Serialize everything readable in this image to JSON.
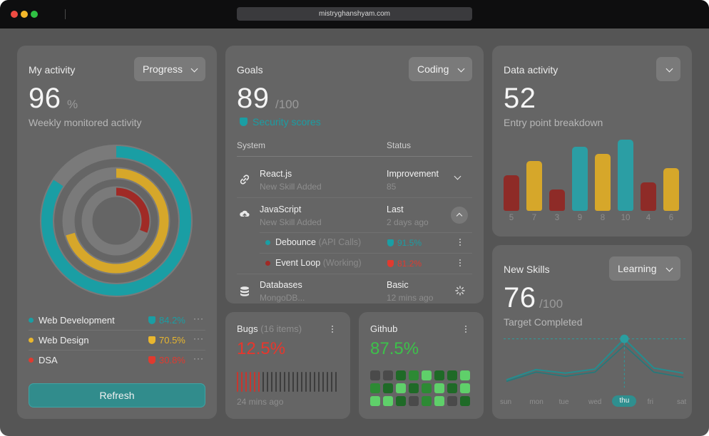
{
  "browser": {
    "url": "mistryghanshyam.com"
  },
  "colors": {
    "teal": "#1a9ea4",
    "yellow": "#d6a72a",
    "red": "#a02a26",
    "green": "#3cc24a",
    "bug_red": "#e8362c"
  },
  "activity": {
    "title": "My activity",
    "dropdown": "Progress",
    "value": "96",
    "unit": "%",
    "subtitle": "Weekly monitored activity",
    "rings": [
      {
        "name": "Web Development",
        "fraction": 0.842,
        "color": "#1a9ea4"
      },
      {
        "name": "Web Design",
        "fraction": 0.705,
        "color": "#d6a72a"
      },
      {
        "name": "DSA",
        "fraction": 0.308,
        "color": "#a02a26"
      }
    ],
    "legend": [
      {
        "name": "Web Development",
        "value": "84.2%",
        "color": "#1a9ea4",
        "icon": "shield-icon"
      },
      {
        "name": "Web Design",
        "value": "70.5%",
        "color": "#e9b62e",
        "icon": "shield-check-icon"
      },
      {
        "name": "DSA",
        "value": "30.8%",
        "color": "#e03a2f",
        "icon": "shield-alert-icon"
      }
    ],
    "more": "···",
    "refresh_label": "Refresh"
  },
  "goals": {
    "title": "Goals",
    "dropdown": "Coding",
    "value": "89",
    "unit": "/100",
    "badge": "Security scores",
    "col_system": "System",
    "col_status": "Status",
    "rows": [
      {
        "name": "React.js",
        "sub": "New Skill Added",
        "status": "Improvement",
        "status_sub": "85",
        "icon": "link-icon"
      },
      {
        "name": "JavaScript",
        "sub": "New Skill Added",
        "status": "Last",
        "status_sub": "2 days ago",
        "icon": "cloud-upload-icon"
      },
      {
        "name": "Databases",
        "sub": "MongoDB...",
        "status": "Basic",
        "status_sub": "12 mins ago",
        "icon": "database-icon"
      }
    ],
    "subrows": [
      {
        "name": "Debounce",
        "muted": " (API Calls)",
        "value": "91.5%",
        "color": "#1a9ea4"
      },
      {
        "name": "Event Loop",
        "muted": " (Working)",
        "value": "81.2%",
        "color": "#e03a2f"
      }
    ]
  },
  "bugs": {
    "title": "Bugs",
    "count": "(16 items)",
    "value": "12.5%",
    "time": "24 mins ago",
    "bars_total": 24,
    "bars_red": 6
  },
  "github": {
    "title": "Github",
    "value": "87.5%",
    "grid": [
      [
        0,
        0,
        2,
        1,
        3,
        2,
        2,
        3
      ],
      [
        1,
        2,
        3,
        2,
        1,
        3,
        2,
        3
      ],
      [
        3,
        3,
        2,
        0,
        1,
        3,
        0,
        2
      ]
    ]
  },
  "data_activity": {
    "title": "Data activity",
    "value": "52",
    "subtitle": "Entry point breakdown",
    "chart_data": {
      "type": "bar",
      "categories": [
        "5",
        "7",
        "3",
        "9",
        "8",
        "10",
        "4",
        "6"
      ],
      "values": [
        5,
        7,
        3,
        9,
        8,
        10,
        4,
        6
      ],
      "colors": [
        "#8e2b27",
        "#d6a72a",
        "#8e2b27",
        "#2b9ea4",
        "#d6a72a",
        "#2b9ea4",
        "#8e2b27",
        "#d6a72a"
      ]
    }
  },
  "skills": {
    "title": "New Skills",
    "dropdown": "Learning",
    "value": "76",
    "unit": "/100",
    "subtitle": "Target Completed",
    "days": [
      "sun",
      "mon",
      "tue",
      "wed",
      "thu",
      "fri",
      "sat"
    ],
    "active_day": "thu",
    "chart_data": {
      "type": "line",
      "x": [
        "sun",
        "mon",
        "tue",
        "wed",
        "thu",
        "fri",
        "sat"
      ],
      "series": [
        {
          "values": [
            0.15,
            0.35,
            0.28,
            0.36,
            0.95,
            0.38,
            0.28
          ]
        },
        {
          "values": [
            0.12,
            0.3,
            0.22,
            0.3,
            0.82,
            0.3,
            0.2
          ]
        }
      ]
    }
  }
}
